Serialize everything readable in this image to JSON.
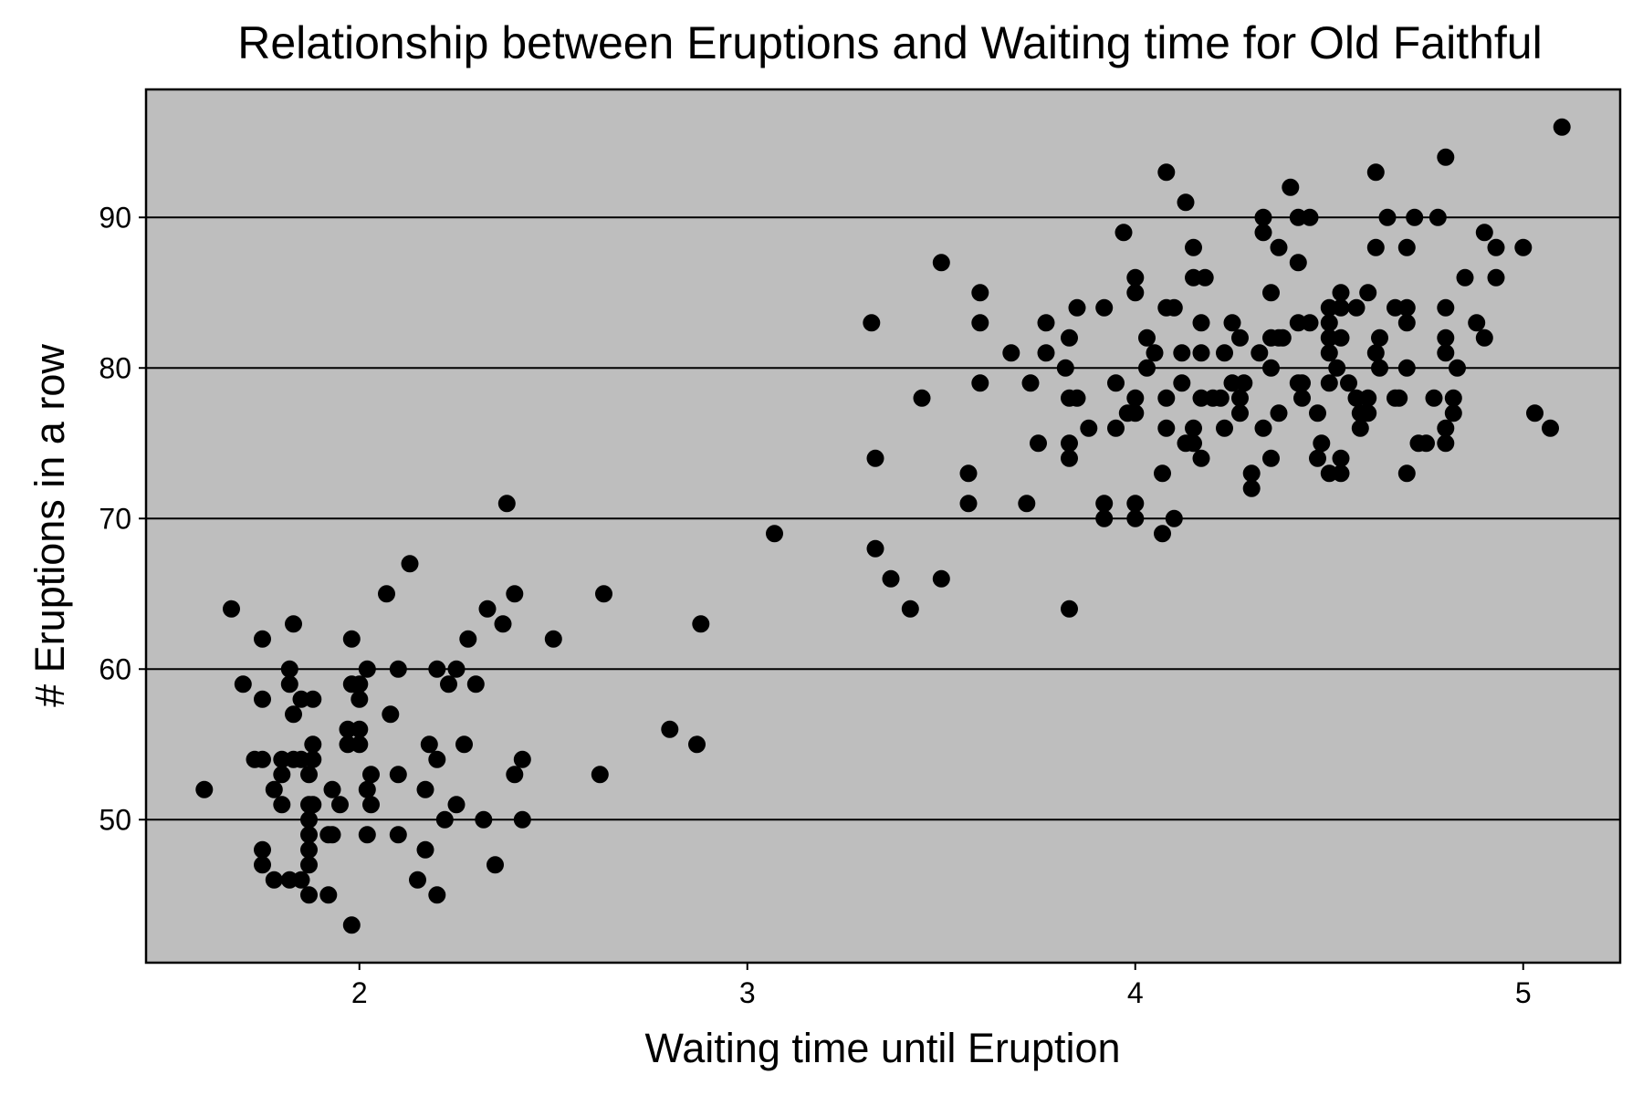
{
  "chart_data": {
    "type": "scatter",
    "title": "Relationship between Eruptions and Waiting time for Old Faithful",
    "xlabel": "Waiting time until Eruption",
    "ylabel": "# Eruptions in a row",
    "xlim": [
      1.45,
      5.25
    ],
    "ylim": [
      40.5,
      98.5
    ],
    "xticks": [
      2,
      3,
      4,
      5
    ],
    "yticks": [
      50,
      60,
      70,
      80,
      90
    ],
    "grid": "horizontal major",
    "background_color": "#bebebe",
    "point_color": "#000000",
    "points": [
      [
        1.6,
        52
      ],
      [
        1.67,
        64
      ],
      [
        1.7,
        59
      ],
      [
        1.73,
        54
      ],
      [
        1.75,
        54
      ],
      [
        1.75,
        62
      ],
      [
        1.75,
        58
      ],
      [
        1.75,
        48
      ],
      [
        1.75,
        47
      ],
      [
        1.78,
        46
      ],
      [
        1.78,
        52
      ],
      [
        1.8,
        54
      ],
      [
        1.8,
        53
      ],
      [
        1.8,
        51
      ],
      [
        1.82,
        60
      ],
      [
        1.82,
        46
      ],
      [
        1.82,
        59
      ],
      [
        1.83,
        54
      ],
      [
        1.83,
        57
      ],
      [
        1.83,
        63
      ],
      [
        1.85,
        58
      ],
      [
        1.85,
        54
      ],
      [
        1.85,
        46
      ],
      [
        1.87,
        53
      ],
      [
        1.87,
        51
      ],
      [
        1.87,
        50
      ],
      [
        1.87,
        49
      ],
      [
        1.87,
        48
      ],
      [
        1.87,
        47
      ],
      [
        1.87,
        45
      ],
      [
        1.88,
        54
      ],
      [
        1.88,
        55
      ],
      [
        1.88,
        58
      ],
      [
        1.88,
        51
      ],
      [
        1.92,
        45
      ],
      [
        1.92,
        49
      ],
      [
        1.93,
        49
      ],
      [
        1.93,
        52
      ],
      [
        1.95,
        51
      ],
      [
        1.97,
        56
      ],
      [
        1.97,
        55
      ],
      [
        1.98,
        62
      ],
      [
        1.98,
        43
      ],
      [
        1.98,
        59
      ],
      [
        2.0,
        59
      ],
      [
        2.0,
        58
      ],
      [
        2.0,
        56
      ],
      [
        2.0,
        55
      ],
      [
        2.02,
        60
      ],
      [
        2.02,
        52
      ],
      [
        2.02,
        49
      ],
      [
        2.03,
        53
      ],
      [
        2.03,
        51
      ],
      [
        2.07,
        65
      ],
      [
        2.08,
        57
      ],
      [
        2.1,
        60
      ],
      [
        2.1,
        53
      ],
      [
        2.1,
        49
      ],
      [
        2.13,
        67
      ],
      [
        2.15,
        46
      ],
      [
        2.17,
        52
      ],
      [
        2.17,
        48
      ],
      [
        2.18,
        55
      ],
      [
        2.2,
        54
      ],
      [
        2.2,
        60
      ],
      [
        2.2,
        45
      ],
      [
        2.22,
        50
      ],
      [
        2.23,
        59
      ],
      [
        2.25,
        51
      ],
      [
        2.25,
        60
      ],
      [
        2.27,
        55
      ],
      [
        2.28,
        62
      ],
      [
        2.3,
        59
      ],
      [
        2.32,
        50
      ],
      [
        2.33,
        64
      ],
      [
        2.35,
        47
      ],
      [
        2.37,
        63
      ],
      [
        2.38,
        71
      ],
      [
        2.4,
        65
      ],
      [
        2.4,
        53
      ],
      [
        2.42,
        54
      ],
      [
        2.42,
        50
      ],
      [
        2.5,
        62
      ],
      [
        2.62,
        53
      ],
      [
        2.63,
        65
      ],
      [
        2.8,
        56
      ],
      [
        2.87,
        55
      ],
      [
        2.88,
        63
      ],
      [
        3.07,
        69
      ],
      [
        3.32,
        83
      ],
      [
        3.33,
        74
      ],
      [
        3.33,
        68
      ],
      [
        3.37,
        66
      ],
      [
        3.42,
        64
      ],
      [
        3.45,
        78
      ],
      [
        3.5,
        87
      ],
      [
        3.5,
        66
      ],
      [
        3.57,
        73
      ],
      [
        3.57,
        71
      ],
      [
        3.6,
        85
      ],
      [
        3.6,
        83
      ],
      [
        3.6,
        79
      ],
      [
        3.68,
        81
      ],
      [
        3.72,
        71
      ],
      [
        3.73,
        79
      ],
      [
        3.75,
        75
      ],
      [
        3.77,
        83
      ],
      [
        3.77,
        81
      ],
      [
        3.82,
        80
      ],
      [
        3.83,
        82
      ],
      [
        3.83,
        78
      ],
      [
        3.83,
        75
      ],
      [
        3.83,
        74
      ],
      [
        3.83,
        64
      ],
      [
        3.85,
        84
      ],
      [
        3.85,
        78
      ],
      [
        3.88,
        76
      ],
      [
        3.92,
        84
      ],
      [
        3.92,
        71
      ],
      [
        3.92,
        70
      ],
      [
        3.95,
        79
      ],
      [
        3.95,
        76
      ],
      [
        3.97,
        89
      ],
      [
        3.98,
        77
      ],
      [
        4.0,
        86
      ],
      [
        4.0,
        85
      ],
      [
        4.0,
        78
      ],
      [
        4.0,
        77
      ],
      [
        4.0,
        71
      ],
      [
        4.0,
        70
      ],
      [
        4.03,
        82
      ],
      [
        4.03,
        80
      ],
      [
        4.05,
        81
      ],
      [
        4.07,
        73
      ],
      [
        4.07,
        69
      ],
      [
        4.08,
        93
      ],
      [
        4.08,
        84
      ],
      [
        4.08,
        78
      ],
      [
        4.08,
        76
      ],
      [
        4.1,
        84
      ],
      [
        4.1,
        70
      ],
      [
        4.12,
        81
      ],
      [
        4.12,
        79
      ],
      [
        4.13,
        91
      ],
      [
        4.13,
        75
      ],
      [
        4.15,
        88
      ],
      [
        4.15,
        86
      ],
      [
        4.15,
        76
      ],
      [
        4.15,
        75
      ],
      [
        4.17,
        83
      ],
      [
        4.17,
        81
      ],
      [
        4.17,
        78
      ],
      [
        4.17,
        74
      ],
      [
        4.18,
        86
      ],
      [
        4.2,
        78
      ],
      [
        4.22,
        78
      ],
      [
        4.23,
        81
      ],
      [
        4.23,
        76
      ],
      [
        4.25,
        83
      ],
      [
        4.25,
        79
      ],
      [
        4.27,
        82
      ],
      [
        4.27,
        78
      ],
      [
        4.27,
        77
      ],
      [
        4.28,
        79
      ],
      [
        4.3,
        73
      ],
      [
        4.3,
        72
      ],
      [
        4.32,
        81
      ],
      [
        4.33,
        90
      ],
      [
        4.33,
        89
      ],
      [
        4.33,
        76
      ],
      [
        4.35,
        85
      ],
      [
        4.35,
        82
      ],
      [
        4.35,
        80
      ],
      [
        4.35,
        74
      ],
      [
        4.37,
        88
      ],
      [
        4.37,
        82
      ],
      [
        4.37,
        77
      ],
      [
        4.38,
        82
      ],
      [
        4.4,
        92
      ],
      [
        4.42,
        90
      ],
      [
        4.42,
        87
      ],
      [
        4.42,
        83
      ],
      [
        4.42,
        79
      ],
      [
        4.43,
        79
      ],
      [
        4.43,
        78
      ],
      [
        4.45,
        90
      ],
      [
        4.45,
        83
      ],
      [
        4.47,
        77
      ],
      [
        4.47,
        74
      ],
      [
        4.48,
        75
      ],
      [
        4.5,
        84
      ],
      [
        4.5,
        83
      ],
      [
        4.5,
        82
      ],
      [
        4.5,
        81
      ],
      [
        4.5,
        79
      ],
      [
        4.5,
        73
      ],
      [
        4.52,
        80
      ],
      [
        4.53,
        85
      ],
      [
        4.53,
        84
      ],
      [
        4.53,
        82
      ],
      [
        4.53,
        74
      ],
      [
        4.53,
        73
      ],
      [
        4.55,
        79
      ],
      [
        4.57,
        84
      ],
      [
        4.57,
        78
      ],
      [
        4.58,
        77
      ],
      [
        4.58,
        76
      ],
      [
        4.6,
        85
      ],
      [
        4.6,
        78
      ],
      [
        4.6,
        77
      ],
      [
        4.62,
        93
      ],
      [
        4.62,
        81
      ],
      [
        4.62,
        88
      ],
      [
        4.63,
        82
      ],
      [
        4.63,
        80
      ],
      [
        4.65,
        90
      ],
      [
        4.67,
        84
      ],
      [
        4.67,
        78
      ],
      [
        4.68,
        78
      ],
      [
        4.7,
        88
      ],
      [
        4.7,
        84
      ],
      [
        4.7,
        83
      ],
      [
        4.7,
        80
      ],
      [
        4.7,
        73
      ],
      [
        4.72,
        90
      ],
      [
        4.73,
        75
      ],
      [
        4.75,
        75
      ],
      [
        4.77,
        78
      ],
      [
        4.78,
        90
      ],
      [
        4.8,
        94
      ],
      [
        4.8,
        84
      ],
      [
        4.8,
        82
      ],
      [
        4.8,
        81
      ],
      [
        4.8,
        76
      ],
      [
        4.8,
        75
      ],
      [
        4.82,
        78
      ],
      [
        4.82,
        77
      ],
      [
        4.83,
        80
      ],
      [
        4.85,
        86
      ],
      [
        4.88,
        83
      ],
      [
        4.9,
        89
      ],
      [
        4.9,
        82
      ],
      [
        4.93,
        88
      ],
      [
        4.93,
        86
      ],
      [
        5.0,
        88
      ],
      [
        5.03,
        77
      ],
      [
        5.07,
        76
      ],
      [
        5.1,
        96
      ]
    ]
  }
}
